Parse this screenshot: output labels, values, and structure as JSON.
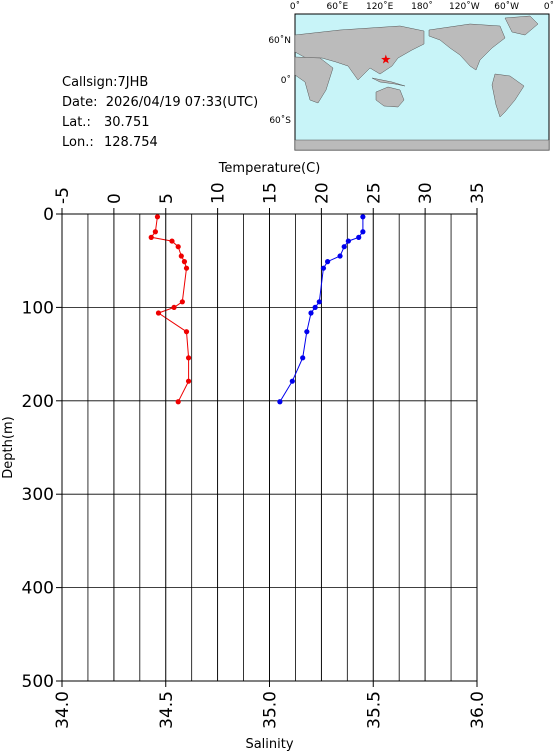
{
  "header": {
    "callsign": "Callsign:7JHB",
    "date": "Date:  2026/04/19 07:33(UTC)",
    "lat_label": "Lat.:",
    "lat": 30.751,
    "lon_label": "Lon.:",
    "lon": 128.754
  },
  "map": {
    "lon_labels": [
      "0˚",
      "60˚E",
      "120˚E",
      "180˚",
      "120˚W",
      "60˚W",
      "0˚"
    ],
    "lat_labels": [
      "60˚N",
      "0˚",
      "60˚S"
    ]
  },
  "chart_data": {
    "type": "profile",
    "y_label": "Depth(m)",
    "depth": [
      3,
      19,
      25,
      29,
      35,
      45,
      51,
      58,
      94,
      100,
      106,
      126,
      154,
      179,
      201
    ],
    "ylim": [
      0,
      500
    ],
    "yticks": [
      0,
      100,
      200,
      300,
      400,
      500
    ],
    "series": [
      {
        "name": "Temperature(C)",
        "color": "#ee0000",
        "axis": "top",
        "values": [
          4.2,
          4.0,
          3.6,
          5.6,
          6.2,
          6.5,
          6.8,
          7.0,
          6.6,
          5.8,
          4.3,
          7.0,
          7.2,
          7.2,
          6.2
        ],
        "xlim": [
          -5,
          35
        ],
        "xticks": [
          -5,
          0,
          5,
          10,
          15,
          20,
          25,
          30,
          35
        ]
      },
      {
        "name": "Salinity",
        "color": "#0000ee",
        "axis": "bottom",
        "values": [
          35.45,
          35.45,
          35.43,
          35.38,
          35.36,
          35.34,
          35.28,
          35.26,
          35.24,
          35.22,
          35.2,
          35.18,
          35.16,
          35.11,
          35.05
        ],
        "xlim": [
          34,
          36
        ],
        "xticks": [
          {
            "value": 34,
            "label": "34.0"
          },
          34.5,
          {
            "value": 35,
            "label": "35.0"
          },
          35.5,
          {
            "value": 36,
            "label": "36.0"
          }
        ],
        "grid_ticks": [
          34.125,
          34.25,
          34.375,
          34.625,
          34.75,
          34.875,
          35.125,
          35.25,
          35.375,
          35.625,
          35.75,
          35.875
        ]
      }
    ],
    "grid": true
  }
}
